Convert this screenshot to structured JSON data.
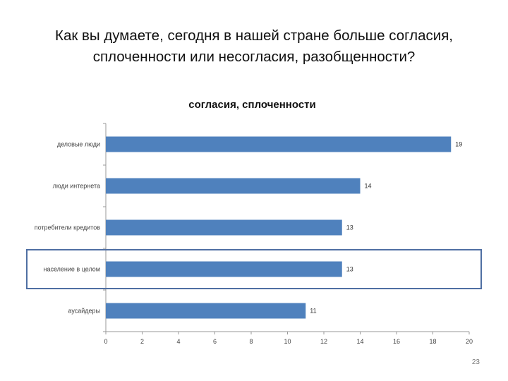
{
  "slide": {
    "title_line1": "Как вы думаете, сегодня в нашей стране больше согласия,",
    "title_line2": "сплоченности или несогласия, разобщенности?",
    "page_number": "23"
  },
  "chart_data": {
    "type": "bar",
    "orientation": "horizontal",
    "title": "согласия, сплоченности",
    "categories": [
      "деловые люди",
      "люди интернета",
      "потребители кредитов",
      "население в целом",
      "аусайдеры"
    ],
    "values": [
      19,
      14,
      13,
      13,
      11
    ],
    "value_labels": [
      "19",
      "14",
      "13",
      "13",
      "11"
    ],
    "xlim": [
      0,
      20
    ],
    "xticks": [
      0,
      2,
      4,
      6,
      8,
      10,
      12,
      14,
      16,
      18,
      20
    ],
    "highlighted_category": "население в целом",
    "grid": false,
    "bar_color": "#4f81bd",
    "highlight_color": "#4f6fa3"
  }
}
